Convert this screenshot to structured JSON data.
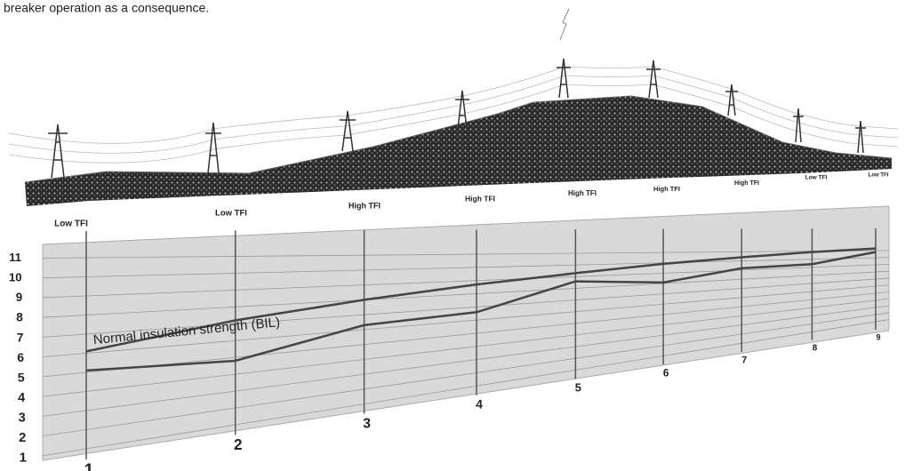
{
  "caption": "breaker operation as a consequence.",
  "tower_labels": [
    "Low TFI",
    "Low TFI",
    "High TFI",
    "High TFI",
    "High TFI",
    "High TFI",
    "High TFI",
    "Low TFI",
    "Low TFI"
  ],
  "chart_data": {
    "type": "line",
    "categories": [
      "1",
      "2",
      "3",
      "4",
      "5",
      "6",
      "7",
      "8",
      "9"
    ],
    "series": [
      {
        "name": "Normal insulation strength (BIL)",
        "color": "#444444",
        "values": [
          6.1,
          7.2,
          8.0,
          8.7,
          9.3,
          9.9,
          10.4,
          10.9,
          11.3
        ]
      },
      {
        "color": "#444444",
        "values": [
          5.1,
          4.8,
          6.3,
          6.6,
          8.6,
          8.1,
          9.2,
          9.4,
          10.8
        ]
      }
    ],
    "ylim": [
      1,
      11
    ],
    "yticks": [
      1,
      2,
      3,
      4,
      5,
      6,
      7,
      8,
      9,
      10,
      11
    ],
    "grid": true
  }
}
